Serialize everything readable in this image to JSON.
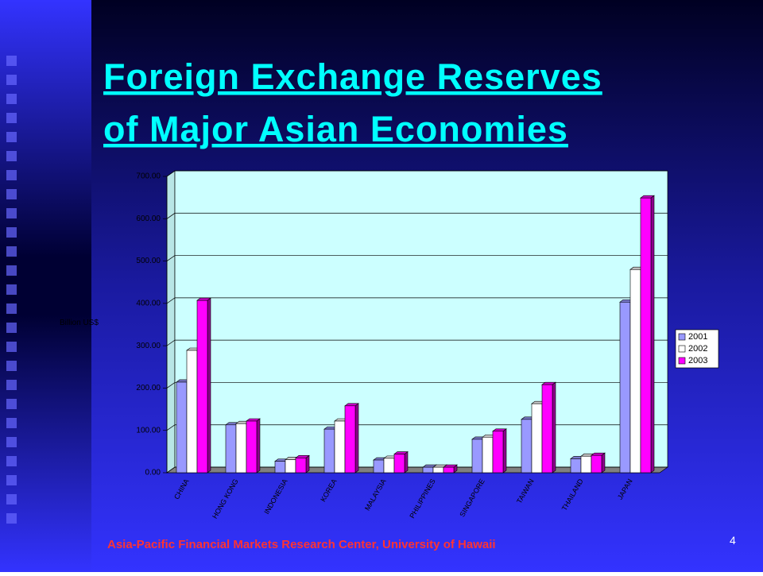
{
  "title": [
    "Foreign Exchange Reserves",
    "of  Major Asian Economies"
  ],
  "footer": "Asia-Pacific Financial Markets Research Center, University of Hawaii",
  "page_number": 4,
  "chart_data": {
    "type": "bar3d",
    "y_label": "Billion US$",
    "categories": [
      "CHINA",
      "HONG KONG",
      "INDONESIA",
      "KOREA",
      "MALAYSIA",
      "PHILIPPINES",
      "SINGAPORE",
      "TAIWAN",
      "THAILAND",
      "JAPAN"
    ],
    "series": [
      {
        "name": "2001",
        "color": "#9999ff",
        "values": [
          214,
          113,
          27,
          103,
          30,
          13,
          79,
          126,
          33,
          403
        ]
      },
      {
        "name": "2002",
        "color": "#ffffff",
        "values": [
          289,
          116,
          31,
          122,
          34,
          13,
          84,
          163,
          39,
          480
        ]
      },
      {
        "name": "2003",
        "color": "#ff00ff",
        "values": [
          407,
          122,
          35,
          158,
          44,
          13,
          98,
          208,
          41,
          649
        ]
      }
    ],
    "ylim": [
      0,
      700
    ],
    "yticks": [
      {
        "value": 0,
        "label": "0.00"
      },
      {
        "value": 100,
        "label": "100.00"
      },
      {
        "value": 200,
        "label": "200.00"
      },
      {
        "value": 300,
        "label": "300.00"
      },
      {
        "value": 400,
        "label": "400.00"
      },
      {
        "value": 500,
        "label": "500.00"
      },
      {
        "value": 600,
        "label": "600.00"
      },
      {
        "value": 700,
        "label": "700.00"
      }
    ],
    "grid": true,
    "legend": "right",
    "wall_color": "#ccffff"
  }
}
